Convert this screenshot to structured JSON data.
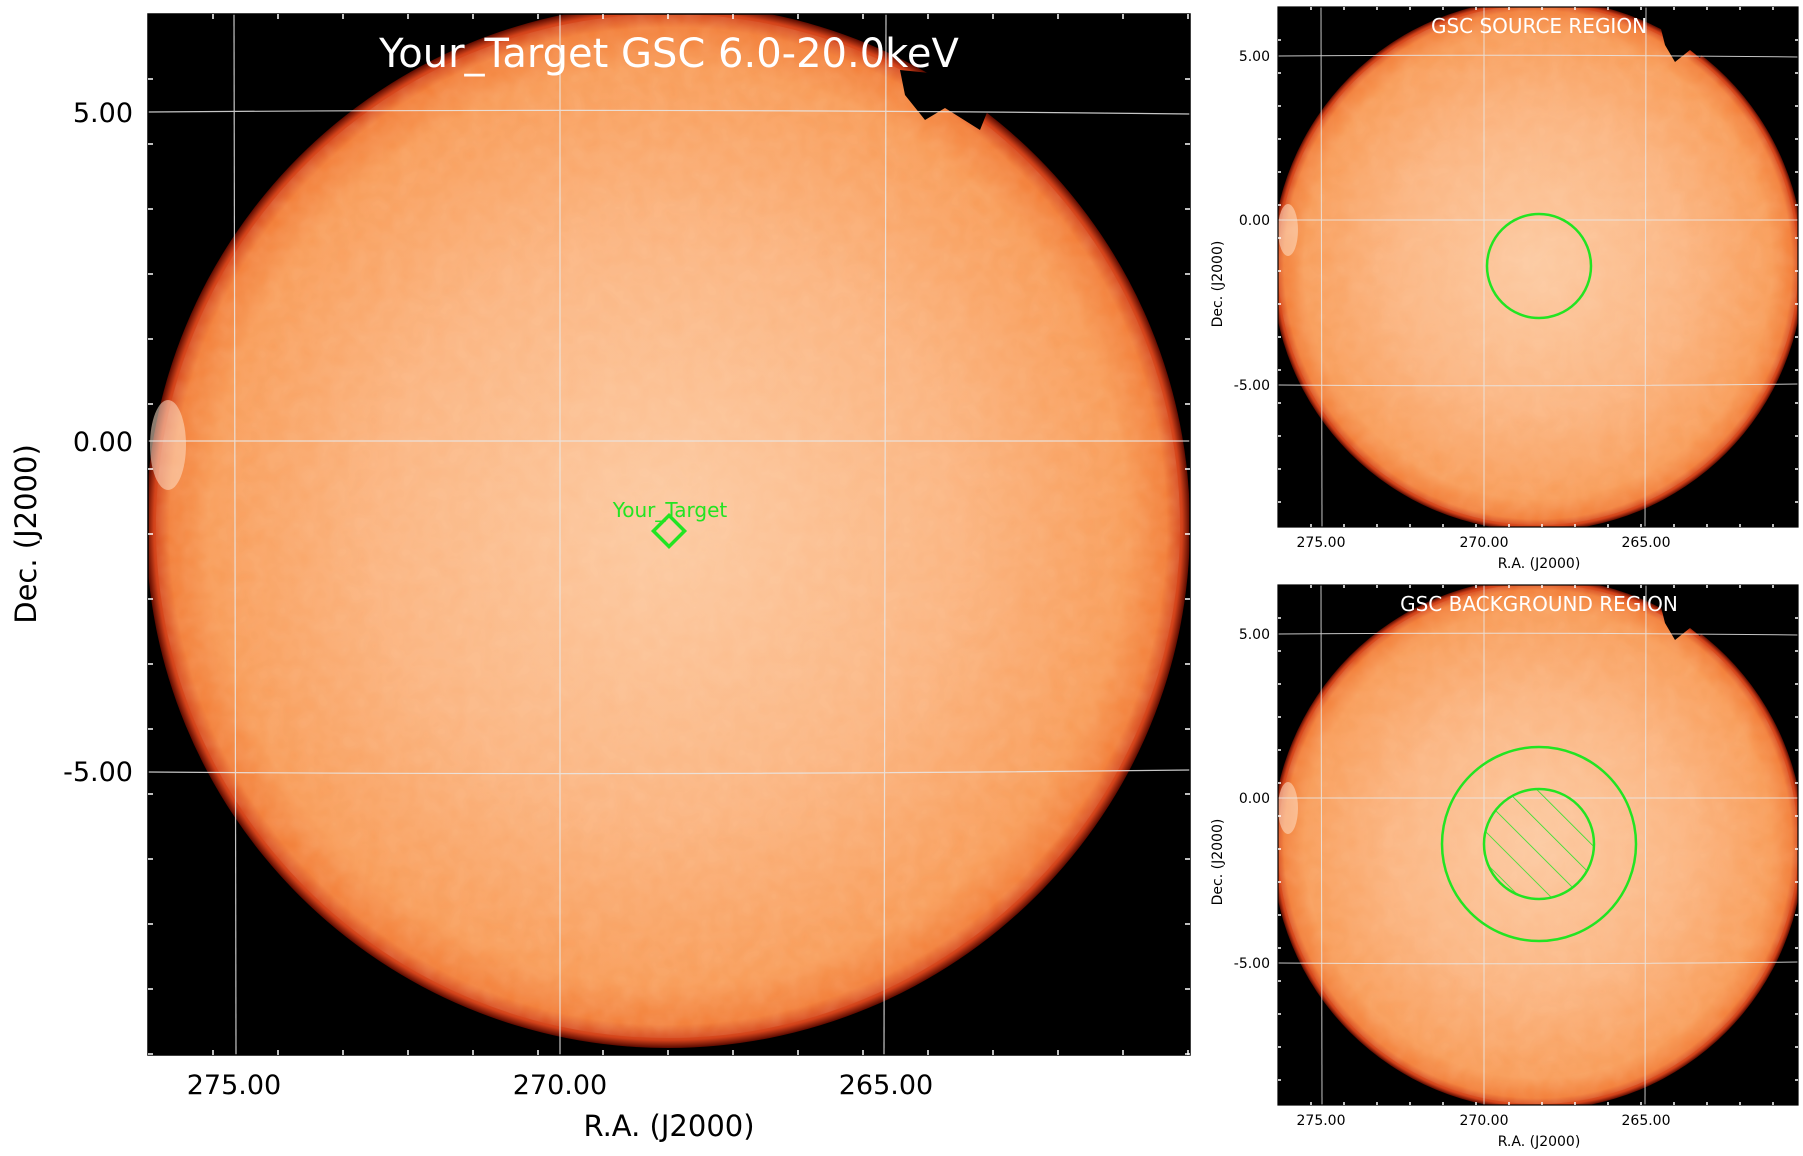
{
  "main_panel": {
    "title": "Your_Target GSC 6.0-20.0keV",
    "xlabel": "R.A. (J2000)",
    "ylabel": "Dec. (J2000)",
    "x_ticks": [
      "275.00",
      "270.00",
      "265.00"
    ],
    "y_ticks": [
      "5.00",
      "0.00",
      "-5.00"
    ],
    "target_label": "Your_Target"
  },
  "source_panel": {
    "title": "GSC SOURCE REGION",
    "xlabel": "R.A. (J2000)",
    "ylabel": "Dec. (J2000)",
    "x_ticks": [
      "275.00",
      "270.00",
      "265.00"
    ],
    "y_ticks": [
      "5.00",
      "0.00",
      "-5.00"
    ]
  },
  "background_panel": {
    "title": "GSC BACKGROUND REGION",
    "xlabel": "R.A. (J2000)",
    "ylabel": "Dec. (J2000)",
    "x_ticks": [
      "275.00",
      "270.00",
      "265.00"
    ],
    "y_ticks": [
      "5.00",
      "0.00",
      "-5.00"
    ]
  },
  "colors": {
    "sky_disk": "#f9a86a",
    "disk_center": "#fcc79c",
    "disk_edge": "#e0571e",
    "background": "#000000",
    "region": "#22e422",
    "grid": "#e8e8e8"
  }
}
